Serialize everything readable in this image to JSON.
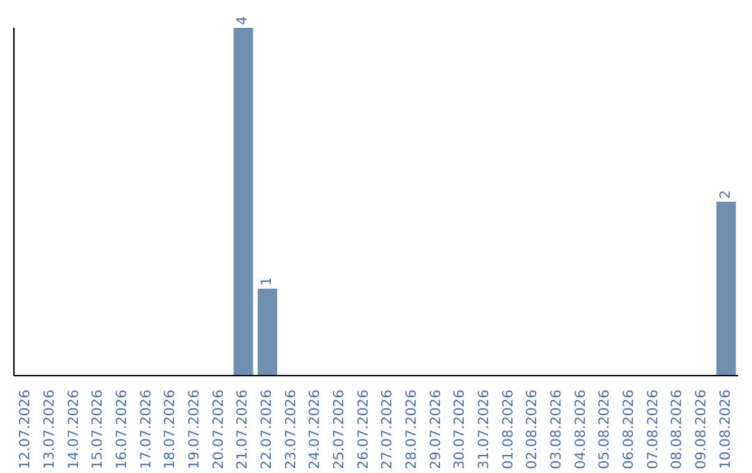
{
  "chart_data": {
    "type": "bar",
    "categories": [
      "12.07.2026",
      "13.07.2026",
      "14.07.2026",
      "15.07.2026",
      "16.07.2026",
      "17.07.2026",
      "18.07.2026",
      "19.07.2026",
      "20.07.2026",
      "21.07.2026",
      "22.07.2026",
      "23.07.2026",
      "24.07.2026",
      "25.07.2026",
      "26.07.2026",
      "27.07.2026",
      "28.07.2026",
      "29.07.2026",
      "30.07.2026",
      "31.07.2026",
      "01.08.2026",
      "02.08.2026",
      "03.08.2026",
      "04.08.2026",
      "05.08.2026",
      "06.08.2026",
      "07.08.2026",
      "08.08.2026",
      "09.08.2026",
      "10.08.2026"
    ],
    "values": [
      null,
      null,
      null,
      null,
      null,
      null,
      null,
      null,
      null,
      4,
      1,
      null,
      null,
      null,
      null,
      null,
      null,
      null,
      null,
      null,
      null,
      null,
      null,
      null,
      null,
      null,
      null,
      null,
      null,
      2
    ],
    "data_labels": true,
    "color": "#6d8fb0",
    "ylim": [
      0,
      4
    ],
    "tick_labels": "x"
  }
}
